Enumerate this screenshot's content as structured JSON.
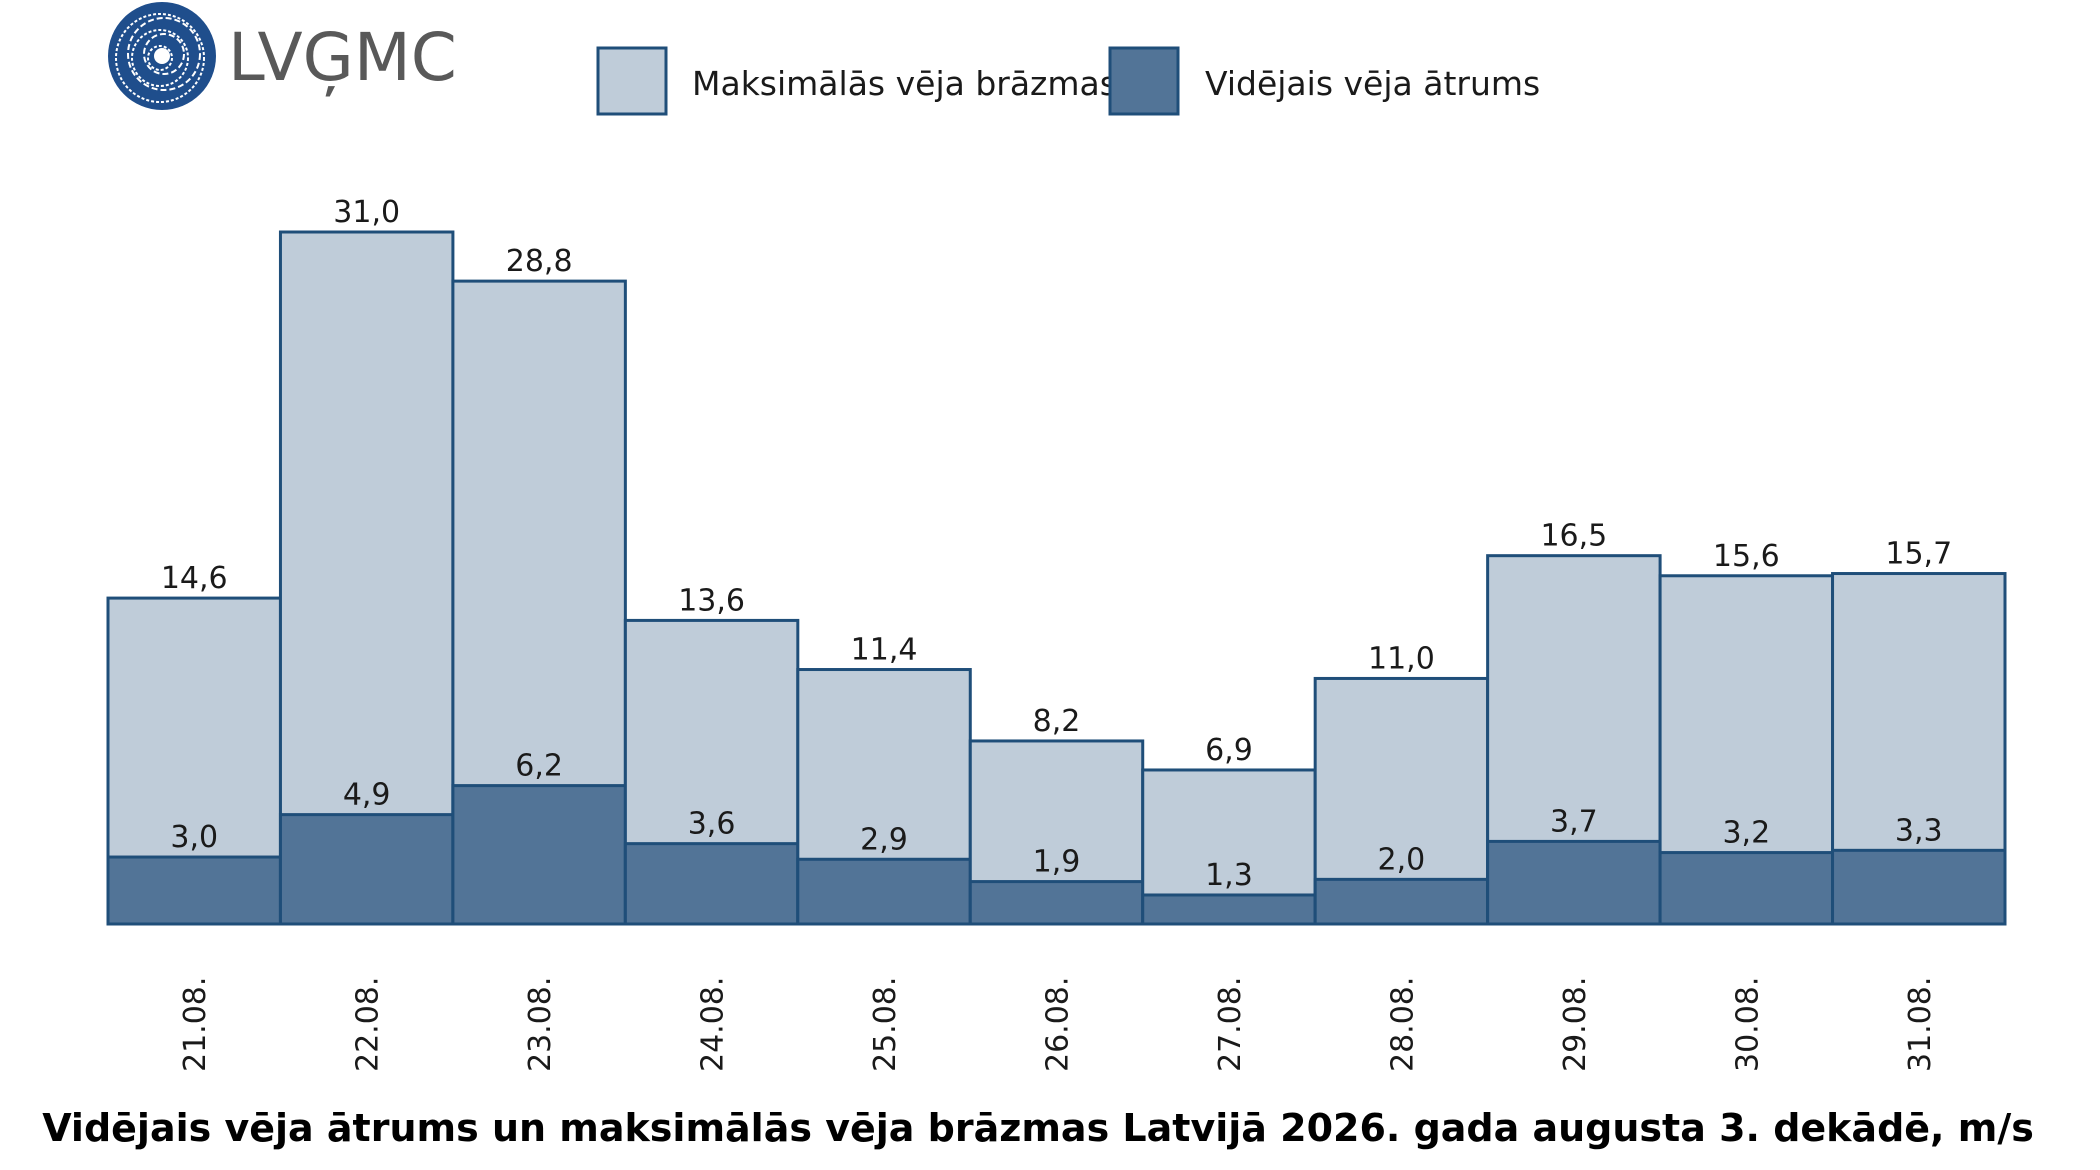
{
  "logo": {
    "text": "LVĢMC"
  },
  "colors": {
    "gust_fill": "#bfccd9",
    "avg_fill": "#527497",
    "stroke": "#1f4e79",
    "logo": "#1f4e8c",
    "logo_text": "#595959"
  },
  "chart_data": {
    "type": "bar",
    "title": "Vidējais vēja ātrums un maksimālās vēja brāzmas Latvijā 2026. gada augusta 3. dekādē, m/s",
    "categories": [
      "21.08.",
      "22.08.",
      "23.08.",
      "24.08.",
      "25.08.",
      "26.08.",
      "27.08.",
      "28.08.",
      "29.08.",
      "30.08.",
      "31.08."
    ],
    "series": [
      {
        "name": "Maksimālās vēja brāzmas",
        "values": [
          14.6,
          31.0,
          28.8,
          13.6,
          11.4,
          8.2,
          6.9,
          11.0,
          16.5,
          15.6,
          15.7
        ],
        "labels": [
          "14,6",
          "31,0",
          "28,8",
          "13,6",
          "11,4",
          "8,2",
          "6,9",
          "11,0",
          "16,5",
          "15,6",
          "15,7"
        ]
      },
      {
        "name": "Vidējais vēja ātrums",
        "values": [
          3.0,
          4.9,
          6.2,
          3.6,
          2.9,
          1.9,
          1.3,
          2.0,
          3.7,
          3.2,
          3.3
        ],
        "labels": [
          "3,0",
          "4,9",
          "6,2",
          "3,6",
          "2,9",
          "1,9",
          "1,3",
          "2,0",
          "3,7",
          "3,2",
          "3,3"
        ]
      }
    ],
    "ylim": [
      0,
      31.0
    ],
    "grid": false,
    "legend_position": "top"
  }
}
